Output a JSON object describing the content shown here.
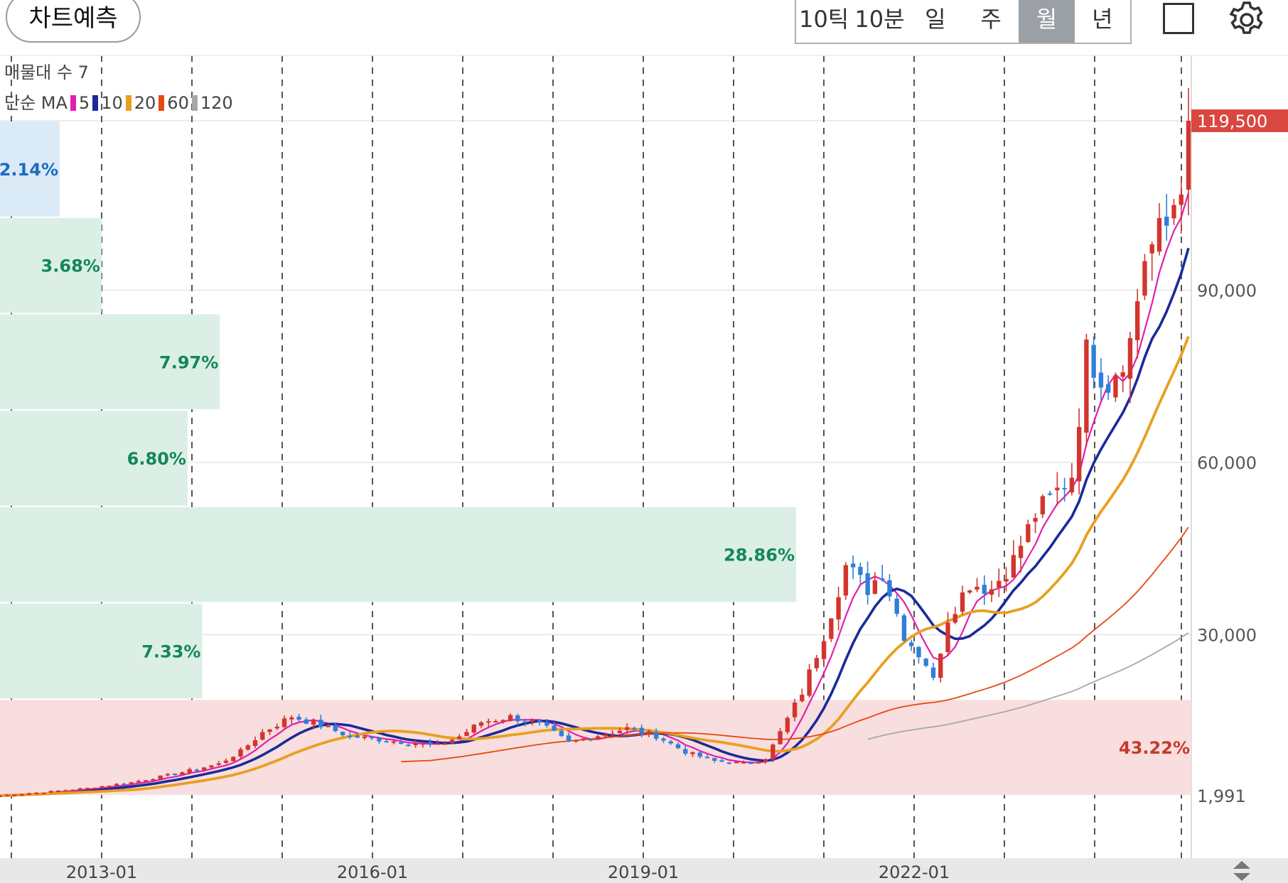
{
  "toolbar": {
    "predict_label": "차트예측",
    "periods": [
      "10틱",
      "10분",
      "일",
      "주",
      "월",
      "년"
    ],
    "active_period": "월",
    "icons": [
      "fullscreen-icon",
      "gear-icon",
      "scroll-updown-icon"
    ]
  },
  "legend": {
    "volume_profile": "매물대 수 7",
    "ma_type": "단순 MA",
    "ma_items": [
      {
        "label": "5",
        "color": "#e020b0"
      },
      {
        "label": "10",
        "color": "#1a2a9a"
      },
      {
        "label": "20",
        "color": "#e8a020"
      },
      {
        "label": "60",
        "color": "#e84810"
      },
      {
        "label": "120",
        "color": "#a8a8a8"
      }
    ]
  },
  "y_axis": {
    "current_price": "119,500",
    "ticks": [
      "90,000",
      "60,000",
      "30,000",
      "1,991"
    ]
  },
  "x_axis": {
    "ticks": [
      "2013-01",
      "2016-01",
      "2019-01",
      "2022-01"
    ]
  },
  "volume_profile": [
    {
      "pct": "2.14%",
      "share": 2.14,
      "color": "#dbeaf7",
      "text_color": "#1c6cc0"
    },
    {
      "pct": "3.68%",
      "share": 3.68,
      "color": "#dcefe6",
      "text_color": "#13875a"
    },
    {
      "pct": "7.97%",
      "share": 7.97,
      "color": "#dcefe6",
      "text_color": "#13875a"
    },
    {
      "pct": "6.80%",
      "share": 6.8,
      "color": "#dcefe6",
      "text_color": "#13875a"
    },
    {
      "pct": "28.86%",
      "share": 28.86,
      "color": "#dcefe6",
      "text_color": "#13875a"
    },
    {
      "pct": "7.33%",
      "share": 7.33,
      "color": "#dcefe6",
      "text_color": "#13875a"
    },
    {
      "pct": "43.22%",
      "share": 43.22,
      "color": "#f8dede",
      "text_color": "#c8382c"
    }
  ],
  "colors": {
    "up": "#d3352e",
    "down": "#2f7fd8",
    "price_label_bg": "#d9473f"
  },
  "chart_data": {
    "type": "candlestick",
    "interval": "monthly",
    "y_min": 1991,
    "y_max": 119500,
    "price_anchors": [
      {
        "t": 0,
        "v": 2000
      },
      {
        "t": 6,
        "v": 2600
      },
      {
        "t": 12,
        "v": 3300
      },
      {
        "t": 18,
        "v": 4300
      },
      {
        "t": 24,
        "v": 5800
      },
      {
        "t": 30,
        "v": 7500
      },
      {
        "t": 33,
        "v": 9700
      },
      {
        "t": 36,
        "v": 13000
      },
      {
        "t": 40,
        "v": 15800
      },
      {
        "t": 44,
        "v": 14200
      },
      {
        "t": 48,
        "v": 12300
      },
      {
        "t": 54,
        "v": 11500
      },
      {
        "t": 60,
        "v": 10700
      },
      {
        "t": 63,
        "v": 12300
      },
      {
        "t": 66,
        "v": 14800
      },
      {
        "t": 70,
        "v": 15700
      },
      {
        "t": 74,
        "v": 14500
      },
      {
        "t": 78,
        "v": 11200
      },
      {
        "t": 81,
        "v": 12200
      },
      {
        "t": 86,
        "v": 13700
      },
      {
        "t": 90,
        "v": 12400
      },
      {
        "t": 94,
        "v": 9600
      },
      {
        "t": 98,
        "v": 8000
      },
      {
        "t": 102,
        "v": 7600
      },
      {
        "t": 105,
        "v": 8400
      },
      {
        "t": 107,
        "v": 13000
      },
      {
        "t": 110,
        "v": 20000
      },
      {
        "t": 113,
        "v": 30000
      },
      {
        "t": 116,
        "v": 42000
      },
      {
        "t": 119,
        "v": 38000
      },
      {
        "t": 121,
        "v": 41000
      },
      {
        "t": 124,
        "v": 30000
      },
      {
        "t": 127,
        "v": 25000
      },
      {
        "t": 128,
        "v": 22000
      },
      {
        "t": 130,
        "v": 33000
      },
      {
        "t": 133,
        "v": 39000
      },
      {
        "t": 136,
        "v": 38000
      },
      {
        "t": 139,
        "v": 43000
      },
      {
        "t": 142,
        "v": 51000
      },
      {
        "t": 145,
        "v": 55000
      },
      {
        "t": 147,
        "v": 58000
      },
      {
        "t": 149,
        "v": 79000
      },
      {
        "t": 152,
        "v": 74000
      },
      {
        "t": 155,
        "v": 81000
      },
      {
        "t": 157,
        "v": 96000
      },
      {
        "t": 160,
        "v": 101000
      },
      {
        "t": 162,
        "v": 110000
      },
      {
        "t": 163,
        "v": 119500
      }
    ]
  }
}
